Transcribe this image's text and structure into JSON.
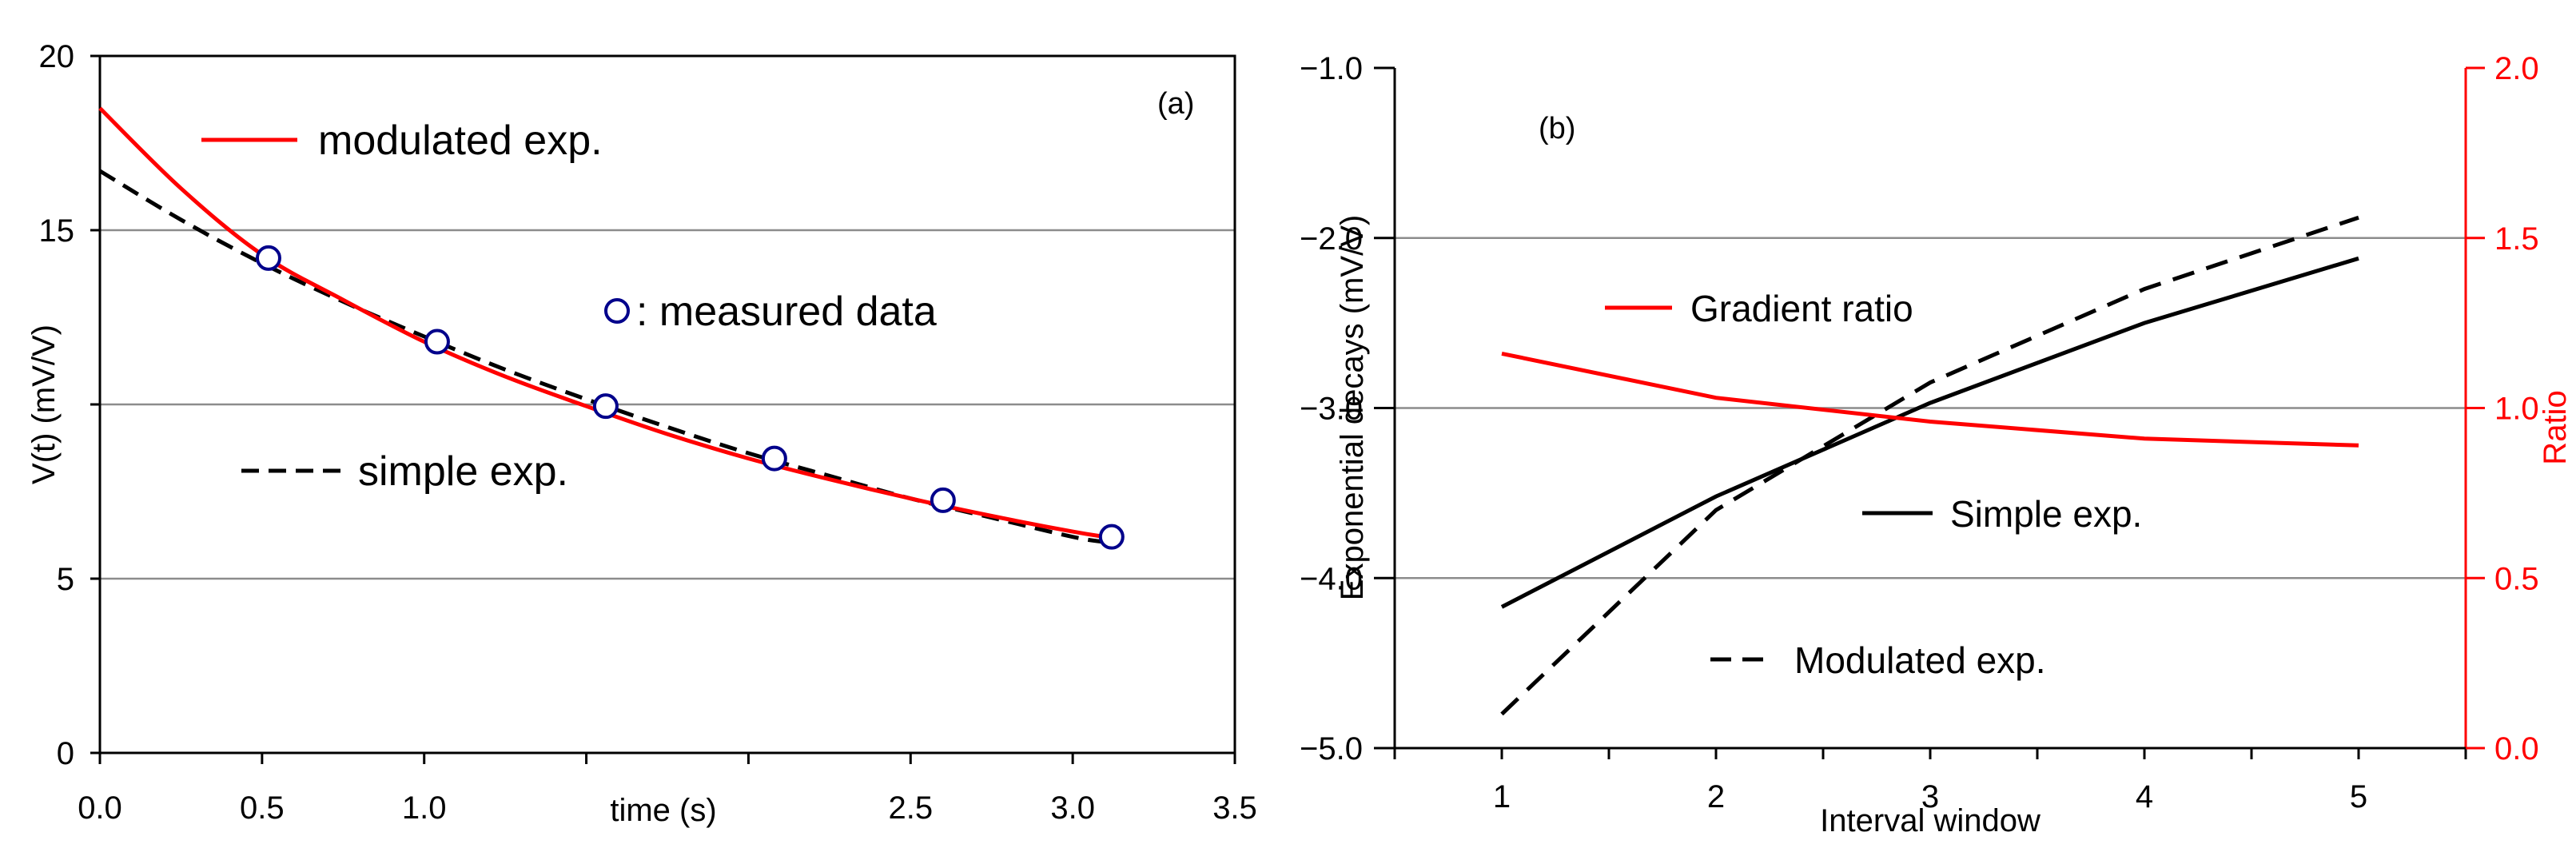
{
  "chart_data": [
    {
      "type": "line",
      "panel_label": "(a)",
      "title": "",
      "xlabel": "time (s)",
      "ylabel": "V(t) (mV/V)",
      "xlim": [
        0,
        3.5
      ],
      "ylim": [
        0,
        20
      ],
      "x_ticks": [
        "0.0",
        "0.5",
        "1.0",
        "",
        "",
        "2.5",
        "3.0",
        "3.5"
      ],
      "x_tick_values": [
        0,
        0.5,
        1.0,
        1.5,
        2.0,
        2.5,
        3.0,
        3.5
      ],
      "y_ticks": [
        0,
        5,
        10,
        15,
        20
      ],
      "y_tick_labels": [
        "0",
        "5",
        "",
        "15",
        "20"
      ],
      "gridlines_y": [
        5,
        10,
        15
      ],
      "series": [
        {
          "name": "modulated exp.",
          "style": "solid",
          "color": "#ff0000",
          "x": [
            0,
            0.25,
            0.5,
            0.75,
            1.0,
            1.25,
            1.5,
            1.75,
            2.0,
            2.25,
            2.5,
            2.75,
            3.0,
            3.1
          ],
          "y": [
            18.5,
            16.2,
            14.3,
            13.0,
            11.8,
            10.8,
            9.95,
            9.15,
            8.45,
            7.85,
            7.3,
            6.8,
            6.35,
            6.2
          ]
        },
        {
          "name": "simple exp.",
          "style": "dashed",
          "color": "#000000",
          "x": [
            0,
            0.25,
            0.5,
            0.75,
            1.0,
            1.25,
            1.5,
            1.75,
            2.0,
            2.25,
            2.5,
            2.75,
            3.0,
            3.1
          ],
          "y": [
            16.7,
            15.3,
            14.05,
            12.95,
            11.95,
            11.0,
            10.15,
            9.35,
            8.6,
            7.95,
            7.3,
            6.75,
            6.2,
            6.05
          ]
        },
        {
          "name": "measured data",
          "style": "markers",
          "color": "#00008b",
          "x": [
            0.52,
            1.04,
            1.56,
            2.08,
            2.6,
            3.12
          ],
          "y": [
            14.2,
            11.8,
            9.95,
            8.45,
            7.25,
            6.2
          ]
        }
      ],
      "legend": {
        "modulated": "modulated exp.",
        "measured": ": measured data",
        "simple": "simple exp."
      }
    },
    {
      "type": "line",
      "panel_label": "(b)",
      "title": "",
      "xlabel": "Interval window",
      "ylabel": "Exponential decays (mV/V)",
      "y2label": "Ratio",
      "xlim": [
        0.5,
        5.5
      ],
      "ylim": [
        -5.0,
        -1.0
      ],
      "y2lim": [
        0.0,
        2.0
      ],
      "x_ticks": [
        1,
        2,
        3,
        4,
        5
      ],
      "y_ticks": [
        "−5.0",
        "−4.0",
        "−3.0",
        "−2.0",
        "−1.0"
      ],
      "y_tick_values": [
        -5.0,
        -4.0,
        -3.0,
        -2.0,
        -1.0
      ],
      "y2_ticks": [
        "0.0",
        "0.5",
        "1.0",
        "1.5",
        "2.0"
      ],
      "y2_tick_values": [
        0.0,
        0.5,
        1.0,
        1.5,
        2.0
      ],
      "gridlines_y": [
        -4.0,
        -3.0,
        -2.0
      ],
      "series": [
        {
          "name": "Simple exp.",
          "style": "solid",
          "color": "#000000",
          "axis": "left",
          "x": [
            1,
            2,
            3,
            4,
            5
          ],
          "y": [
            -4.17,
            -3.52,
            -2.97,
            -2.5,
            -2.12
          ]
        },
        {
          "name": "Modulated exp.",
          "style": "dashed",
          "color": "#000000",
          "axis": "left",
          "x": [
            1,
            2,
            3,
            4,
            5
          ],
          "y": [
            -4.8,
            -3.6,
            -2.85,
            -2.3,
            -1.88
          ]
        },
        {
          "name": "Gradient ratio",
          "style": "solid",
          "color": "#ff0000",
          "axis": "right",
          "x": [
            1,
            2,
            3,
            4,
            5
          ],
          "y": [
            1.16,
            1.03,
            0.96,
            0.91,
            0.89
          ]
        }
      ],
      "legend": {
        "gradient": "Gradient ratio",
        "simple": "Simple exp.",
        "modulated": "Modulated exp."
      }
    }
  ],
  "colors": {
    "red": "#ff0000",
    "black": "#000000",
    "marker": "#00008b",
    "grid": "#8c8c8c"
  }
}
